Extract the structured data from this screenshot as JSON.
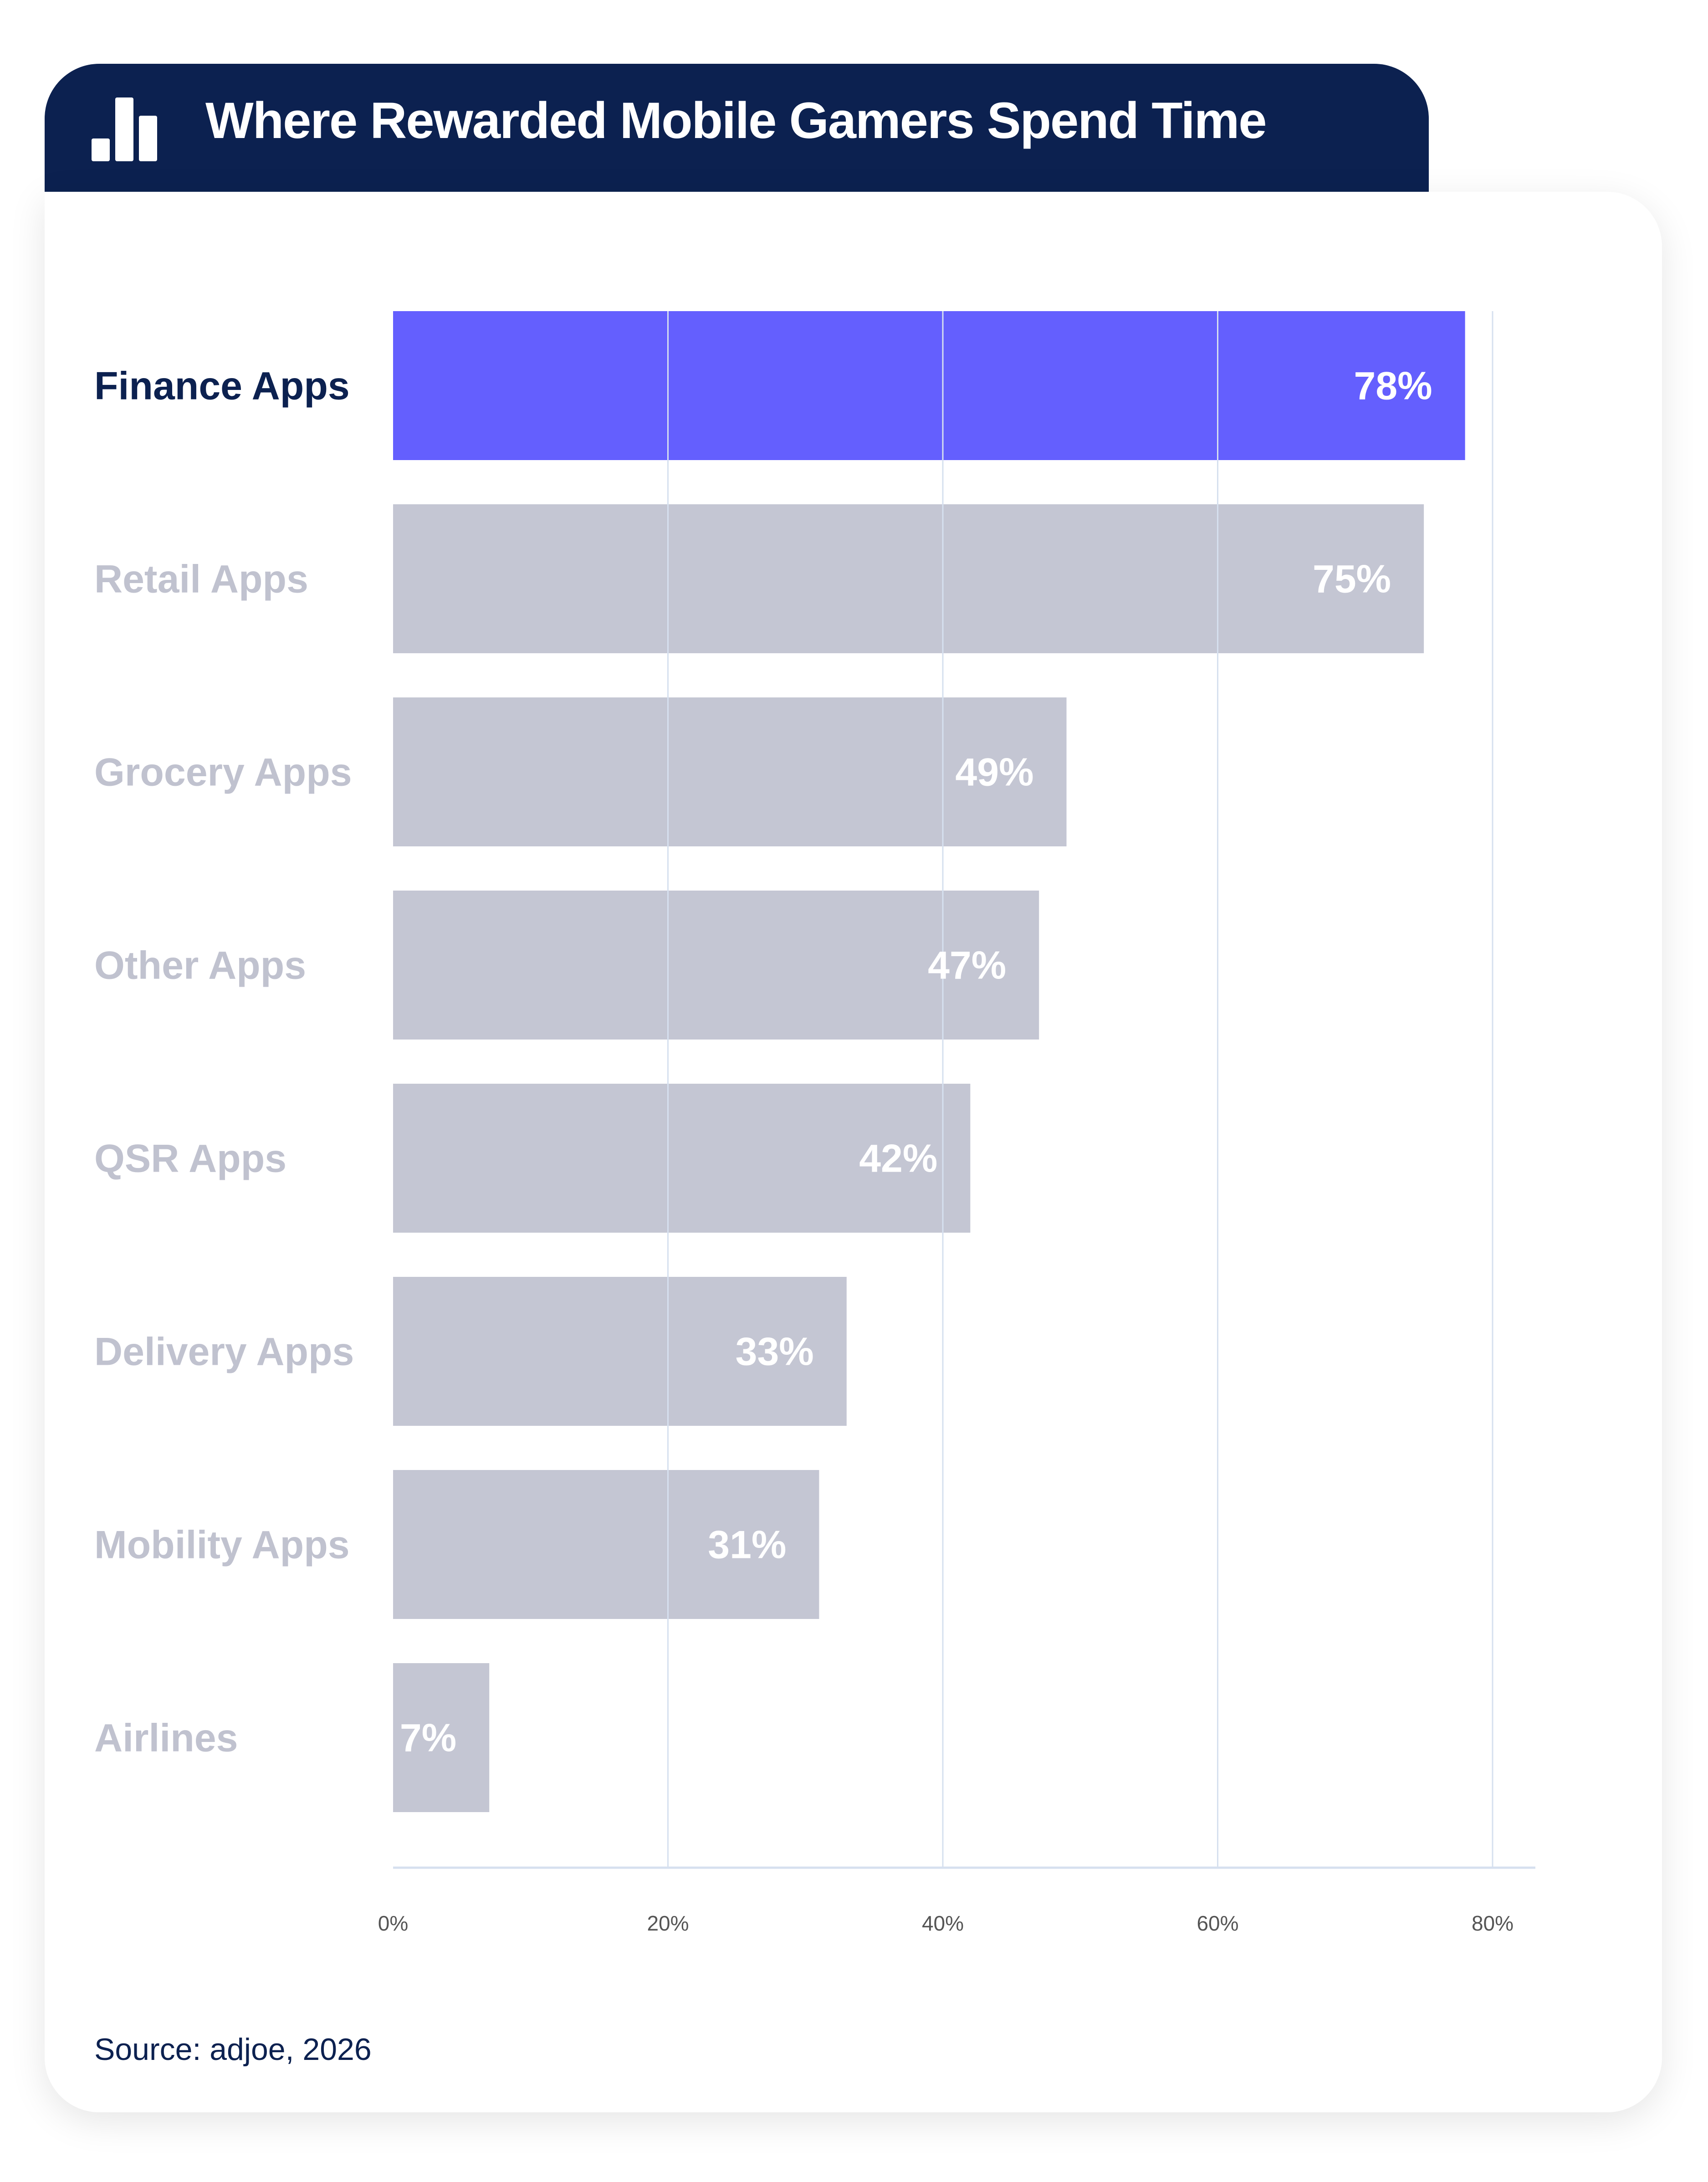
{
  "header": {
    "title": "Where Rewarded Mobile Gamers Spend Time",
    "icon": "bar-chart-icon"
  },
  "chart_data": {
    "type": "bar",
    "orientation": "horizontal",
    "title": "Where Rewarded Mobile Gamers Spend Time",
    "categories": [
      "Finance Apps",
      "Retail Apps",
      "Grocery Apps",
      "Other Apps",
      "QSR Apps",
      "Delivery Apps",
      "Mobility Apps",
      "Airlines"
    ],
    "values": [
      78,
      75,
      49,
      47,
      42,
      33,
      31,
      7
    ],
    "value_labels": [
      "78%",
      "75%",
      "49%",
      "47%",
      "42%",
      "33%",
      "31%",
      "7%"
    ],
    "highlight_index": 0,
    "xlim": [
      0,
      80
    ],
    "xticks": [
      0,
      20,
      40,
      60,
      80
    ],
    "xtick_labels": [
      "0%",
      "20%",
      "40%",
      "60%",
      "80%"
    ],
    "xlabel": "",
    "ylabel": "",
    "grid": true,
    "colors": {
      "highlight": "#645ffe",
      "bar": "#c4c6d3",
      "highlight_label": "#0c2150",
      "label": "#c0c2cf",
      "grid": "#d6e0ef",
      "tick": "#555555"
    }
  },
  "footer": {
    "source": "Source: adjoe, 2026"
  }
}
